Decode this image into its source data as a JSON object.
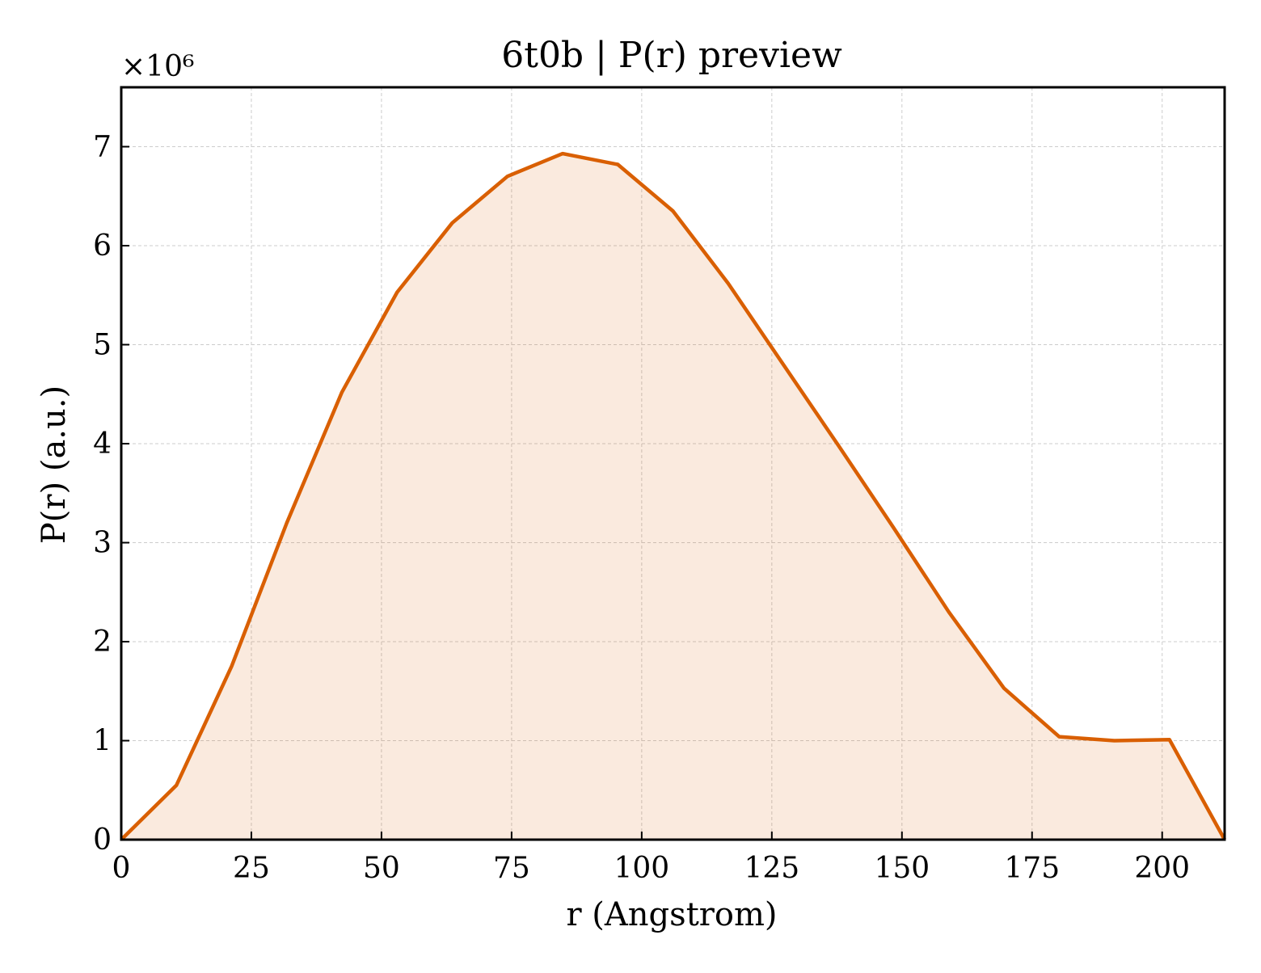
{
  "chart_data": {
    "type": "area",
    "title": "6t0b | P(r) preview",
    "xlabel": "r (Angstrom)",
    "ylabel": "P(r) (a.u.)",
    "y_multiplier_label": "×10⁶",
    "xlim": [
      0,
      212
    ],
    "ylim": [
      0,
      7.6
    ],
    "x_ticks": [
      0,
      25,
      50,
      75,
      100,
      125,
      150,
      175,
      200
    ],
    "x_tick_labels": [
      "0",
      "25",
      "50",
      "75",
      "100",
      "125",
      "150",
      "175",
      "200"
    ],
    "y_ticks": [
      0,
      1,
      2,
      3,
      4,
      5,
      6,
      7
    ],
    "y_tick_labels": [
      "0",
      "1",
      "2",
      "3",
      "4",
      "5",
      "6",
      "7"
    ],
    "grid": true,
    "series": [
      {
        "color": "#d95f02",
        "fill_color": "#d95f02",
        "fill_opacity": 0.13,
        "x": [
          0,
          10.6,
          21.2,
          31.8,
          42.4,
          53.0,
          63.6,
          74.2,
          84.8,
          95.4,
          106.0,
          116.6,
          127.2,
          137.8,
          148.4,
          159.0,
          169.6,
          180.2,
          190.8,
          201.4,
          212.0
        ],
        "y": [
          0,
          0.55,
          1.75,
          3.2,
          4.52,
          5.53,
          6.23,
          6.7,
          6.93,
          6.82,
          6.35,
          5.62,
          4.8,
          3.98,
          3.15,
          2.3,
          1.53,
          1.04,
          1.0,
          1.01,
          0
        ]
      }
    ]
  }
}
